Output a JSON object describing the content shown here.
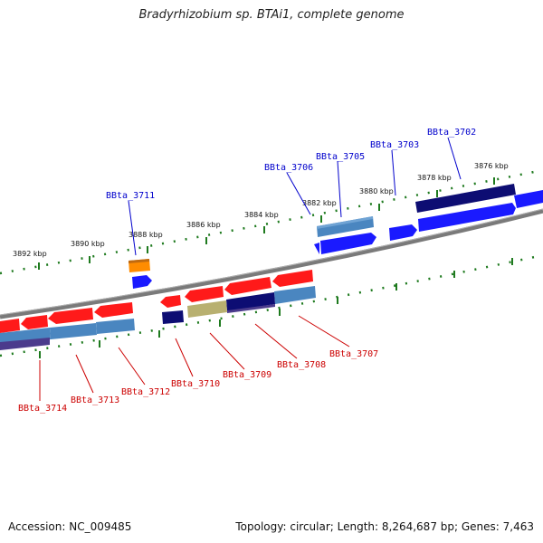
{
  "title": "Bradyrhizobium sp. BTAi1, complete genome",
  "footer": {
    "accession": "Accession: NC_009485",
    "summary": "Topology: circular; Length: 8,264,687 bp; Genes: 7,463"
  },
  "colors": {
    "backbone": "#7a7a7a",
    "tick": "#1e7a1e",
    "forward_label": "#0000cc",
    "reverse_label": "#cc0000",
    "red_gene": "#ff1a1a",
    "blue_gene": "#1a1aff",
    "steel_blue": "#4a86c0",
    "navy": "#0d0d73",
    "purple": "#4b3b8c",
    "khaki": "#b8b070",
    "orange": "#ff8c00"
  },
  "scale_labels": [
    "3876 kbp",
    "3878 kbp",
    "3880 kbp",
    "3882 kbp",
    "3884 kbp",
    "3886 kbp",
    "3888 kbp",
    "3890 kbp",
    "3892 kbp"
  ],
  "forward_genes": [
    "BBta_3702",
    "BBta_3703",
    "BBta_3705",
    "BBta_3706",
    "BBta_3711"
  ],
  "reverse_genes": [
    "BBta_3707",
    "BBta_3708",
    "BBta_3709",
    "BBta_3710",
    "BBta_3712",
    "BBta_3713",
    "BBta_3714"
  ]
}
